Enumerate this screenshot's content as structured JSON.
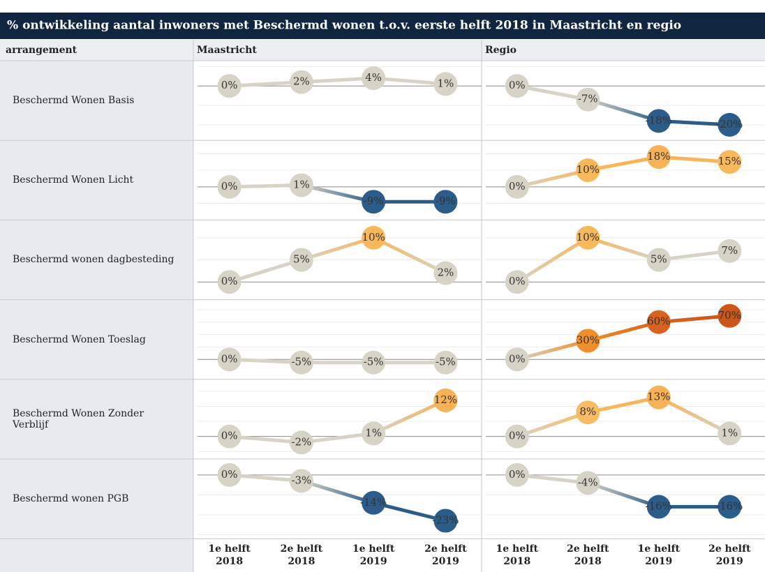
{
  "chart_data": {
    "type": "line",
    "title": "% ontwikkeling aantal inwoners met Beschermd wonen t.o.v. eerste helft 2018 in Maastricht en regio",
    "row_header": "arrangement",
    "columns": [
      "Maastricht",
      "Regio"
    ],
    "categories": [
      "1e helft 2018",
      "2e helft 2018",
      "1e helft 2019",
      "2e helft 2019"
    ],
    "grid": true,
    "rows": [
      {
        "name": "Beschermd Wonen Basis",
        "ylim": [
          -28,
          13
        ],
        "yticks": [
          -20,
          -10,
          0,
          10
        ],
        "panels": [
          {
            "values": [
              0,
              2,
              4,
              1
            ],
            "value_labels": [
              "0%",
              "2%",
              "4%",
              "1%"
            ],
            "colors": [
              "#d7d3c7",
              "#d7d3c7",
              "#d7d3c7",
              "#d7d3c7"
            ]
          },
          {
            "values": [
              0,
              -7,
              -18,
              -20
            ],
            "value_labels": [
              "0%",
              "-7%",
              "-18%",
              "-20%"
            ],
            "colors": [
              "#d7d3c7",
              "#d7d3c7",
              "#2b5c8a",
              "#2b5c8a"
            ]
          }
        ]
      },
      {
        "name": "Beschermd Wonen Licht",
        "ylim": [
          -20,
          28
        ],
        "yticks": [
          -10,
          0,
          10,
          20
        ],
        "panels": [
          {
            "values": [
              0,
              1,
              -9,
              -9
            ],
            "value_labels": [
              "0%",
              "1%",
              "-9%",
              "-9%"
            ],
            "colors": [
              "#d7d3c7",
              "#d7d3c7",
              "#2b5c8a",
              "#2b5c8a"
            ]
          },
          {
            "values": [
              0,
              10,
              18,
              15
            ],
            "value_labels": [
              "0%",
              "10%",
              "18%",
              "15%"
            ],
            "colors": [
              "#d7d3c7",
              "#f8b85c",
              "#f7b255",
              "#f8b85c"
            ]
          }
        ]
      },
      {
        "name": "Beschermd wonen dagbesteding",
        "ylim": [
          -4,
          14
        ],
        "yticks": [
          0,
          5,
          10
        ],
        "panels": [
          {
            "values": [
              0,
              5,
              10,
              2
            ],
            "value_labels": [
              "0%",
              "5%",
              "10%",
              "2%"
            ],
            "colors": [
              "#d7d3c7",
              "#d7d3c7",
              "#f8b85c",
              "#d7d3c7"
            ]
          },
          {
            "values": [
              0,
              10,
              5,
              7
            ],
            "value_labels": [
              "0%",
              "10%",
              "5%",
              "7%"
            ],
            "colors": [
              "#d7d3c7",
              "#f8b85c",
              "#d7d3c7",
              "#d7d3c7"
            ]
          }
        ]
      },
      {
        "name": "Beschermd Wonen Toeslag",
        "ylim": [
          -32,
          96
        ],
        "yticks": [
          0,
          20,
          40,
          60,
          80
        ],
        "panels": [
          {
            "values": [
              0,
              -5,
              -5,
              -5
            ],
            "value_labels": [
              "0%",
              "-5%",
              "-5%",
              "-5%"
            ],
            "colors": [
              "#d7d3c7",
              "#d7d3c7",
              "#d7d3c7",
              "#d7d3c7"
            ]
          },
          {
            "values": [
              0,
              30,
              60,
              70
            ],
            "value_labels": [
              "0%",
              "30%",
              "60%",
              "70%"
            ],
            "colors": [
              "#d7d3c7",
              "#ef8f2c",
              "#d8621e",
              "#cc561a"
            ]
          }
        ]
      },
      {
        "name": "Beschermd Wonen Zonder Verblijf",
        "ylim": [
          -7.5,
          19
        ],
        "yticks": [
          -5,
          0,
          5,
          10,
          15
        ],
        "panels": [
          {
            "values": [
              0,
              -2,
              1,
              12
            ],
            "value_labels": [
              "0%",
              "-2%",
              "1%",
              "12%"
            ],
            "colors": [
              "#d7d3c7",
              "#d7d3c7",
              "#d7d3c7",
              "#f7b255"
            ]
          },
          {
            "values": [
              0,
              8,
              13,
              1
            ],
            "value_labels": [
              "0%",
              "8%",
              "13%",
              "1%"
            ],
            "colors": [
              "#d7d3c7",
              "#f9bc62",
              "#f7b255",
              "#d7d3c7"
            ]
          }
        ]
      },
      {
        "name": "Beschermd wonen PGB",
        "ylim": [
          -32,
          8
        ],
        "yticks": [
          -30,
          -20,
          -10,
          0
        ],
        "panels": [
          {
            "values": [
              0,
              -3,
              -14,
              -23
            ],
            "value_labels": [
              "0%",
              "-3%",
              "-14%",
              "-23%"
            ],
            "colors": [
              "#d7d3c7",
              "#d7d3c7",
              "#2b5c8a",
              "#2b5c8a"
            ]
          },
          {
            "values": [
              0,
              -4,
              -16,
              -16
            ],
            "value_labels": [
              "0%",
              "-4%",
              "-16%",
              "-16%"
            ],
            "colors": [
              "#d7d3c7",
              "#d7d3c7",
              "#2b5c8a",
              "#2b5c8a"
            ]
          }
        ]
      }
    ]
  }
}
